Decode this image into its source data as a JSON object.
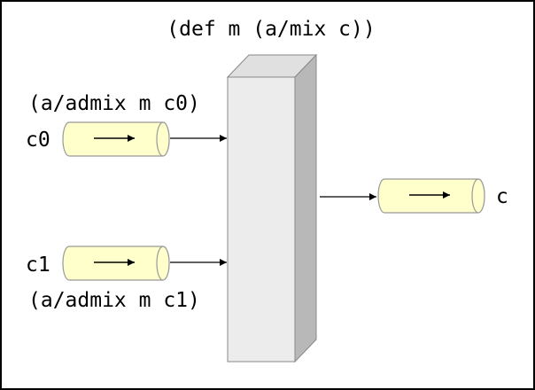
{
  "title": "(def m (a/mix c))",
  "channels": {
    "in0": {
      "label": "c0",
      "admix": "(a/admix m c0)"
    },
    "in1": {
      "label": "c1",
      "admix": "(a/admix m c1)"
    },
    "out": {
      "label": "c"
    }
  },
  "icons": {
    "channel": "cylinder-pipe-icon",
    "direction": "right-arrow-icon",
    "mixer": "3d-box-icon"
  },
  "colors": {
    "pipe_fill": "#ffffcc",
    "pipe_stroke": "#999999",
    "box_front": "#ececec",
    "box_top": "#e0e0e0",
    "box_side": "#b8b8b8",
    "border": "#000000",
    "line": "#000000"
  }
}
